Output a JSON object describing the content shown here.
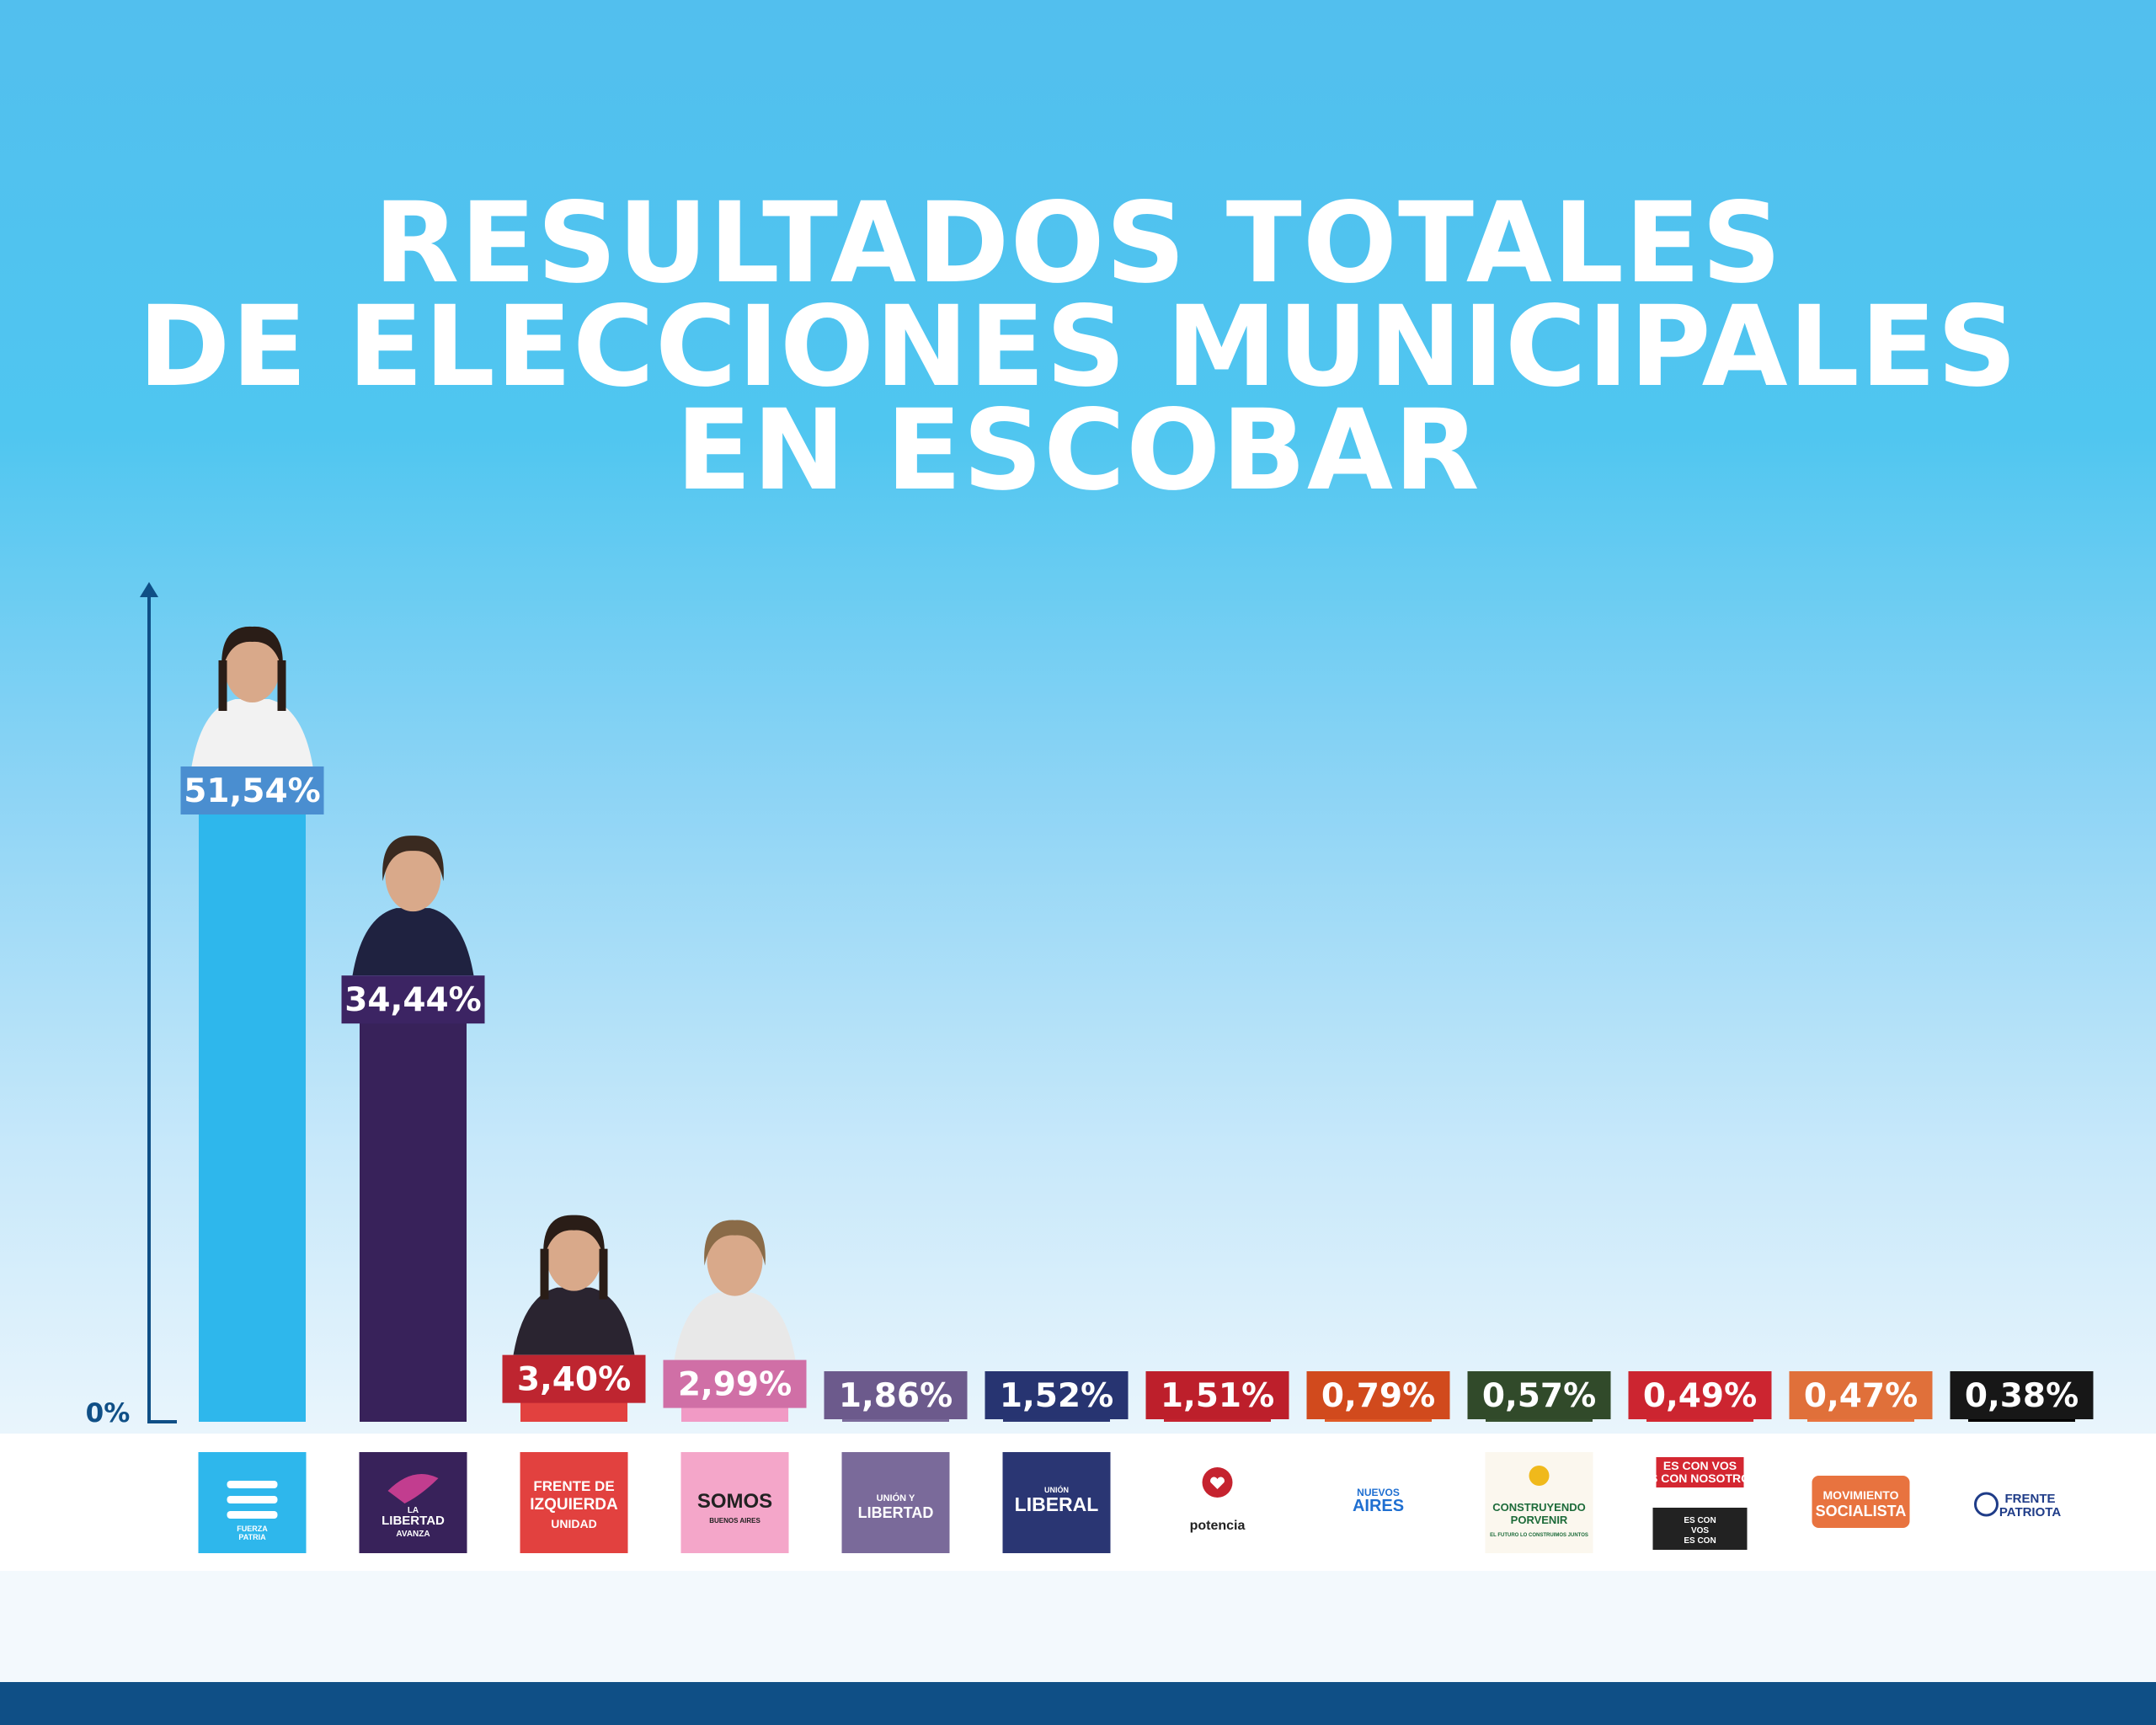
{
  "title_lines": [
    "RESULTADOS TOTALES",
    "DE ELECCIONES MUNICIPALES",
    "EN ESCOBAR"
  ],
  "chart_data": {
    "type": "bar",
    "title": "RESULTADOS TOTALES DE ELECCIONES MUNICIPALES EN ESCOBAR",
    "xlabel": "",
    "ylabel": "",
    "y_axis_label": "0%",
    "ylim": [
      0,
      58
    ],
    "grid": false,
    "legend": "none",
    "categories": [
      "FUERZA PATRIA",
      "LA LIBERTAD AVANZA",
      "FRENTE DE IZQUIERDA UNIDAD",
      "SOMOS BUENOS AIRES",
      "UNIÓN Y LIBERTAD",
      "UNIÓN LIBERAL",
      "potencia",
      "NUEVOS AIRES",
      "CONSTRUYENDO PORVENIR",
      "ES CON VOS ES CON NOSOTROS",
      "MOVIMIENTO SOCIALISTA",
      "FRENTE PATRIOTA"
    ],
    "values": [
      51.54,
      34.44,
      3.4,
      2.99,
      1.86,
      1.52,
      1.51,
      0.79,
      0.57,
      0.49,
      0.47,
      0.38
    ],
    "value_labels": [
      "51,54%",
      "34,44%",
      "3,40%",
      "2,99%",
      "1,86%",
      "1,52%",
      "1,51%",
      "0,79%",
      "0,57%",
      "0,49%",
      "0,47%",
      "0,38%"
    ],
    "bar_colors": [
      "#2eb7ec",
      "#38225a",
      "#e2413f",
      "#f19ac5",
      "#7a6a9a",
      "#2a3673",
      "#c5232f",
      "#e05a26",
      "#354f2e",
      "#d42731",
      "#e8733f",
      "#000000"
    ],
    "label_colors": [
      "#4a8ed0",
      "#3c2463",
      "#be2530",
      "#d06fa6",
      "#6c5a8c",
      "#273471",
      "#bd1f2b",
      "#d14a1d",
      "#314a2a",
      "#cc2530",
      "#e0703a",
      "#171717"
    ],
    "photos": [
      true,
      true,
      true,
      true,
      false,
      false,
      false,
      false,
      false,
      false,
      false,
      false
    ]
  },
  "logos": [
    {
      "bg": "#2eb7ec",
      "lines": [
        "FUERZA",
        "PATRIA"
      ],
      "fg": "#ffffff"
    },
    {
      "bg": "#38225a",
      "lines": [
        "LA",
        "LIBERTAD",
        "AVANZA"
      ],
      "fg": "#ffffff"
    },
    {
      "bg": "#e2413f",
      "lines": [
        "FRENTE DE",
        "IZQUIERDA",
        "UNIDAD"
      ],
      "fg": "#ffffff"
    },
    {
      "bg": "#f4a6c9",
      "lines": [
        "SOMOS",
        "BUENOS AIRES"
      ],
      "fg": "#222222"
    },
    {
      "bg": "#7a6a9a",
      "lines": [
        "UNIÓN Y",
        "LIBERTAD"
      ],
      "fg": "#ffffff"
    },
    {
      "bg": "#2a3673",
      "lines": [
        "UNIÓN",
        "LIBERAL"
      ],
      "fg": "#ffffff"
    },
    {
      "bg": "#ffffff",
      "lines": [
        "potencia"
      ],
      "fg": "#222222"
    },
    {
      "bg": "#ffffff",
      "lines": [
        "NUEVOS",
        "AIRES"
      ],
      "fg": "#1f6fd1"
    },
    {
      "bg": "#fbf7ee",
      "lines": [
        "CONSTRUYENDO",
        "PORVENIR",
        "EL FUTURO LO CONSTRUIMOS JUNTOS"
      ],
      "fg": "#1d6b3a"
    },
    {
      "bg": "#ffffff",
      "lines": [
        "ES CON VOS",
        "ES CON NOSOTROS",
        "ES CON",
        "VOS",
        "ES CON"
      ],
      "fg": "#ffffff"
    },
    {
      "bg": "#ffffff",
      "lines": [
        "MOVIMIENTO",
        "SOCIALISTA"
      ],
      "fg": "#ffffff"
    },
    {
      "bg": "#ffffff",
      "lines": [
        "FRENTE",
        "PATRIOTA"
      ],
      "fg": "#1f3c88"
    }
  ]
}
